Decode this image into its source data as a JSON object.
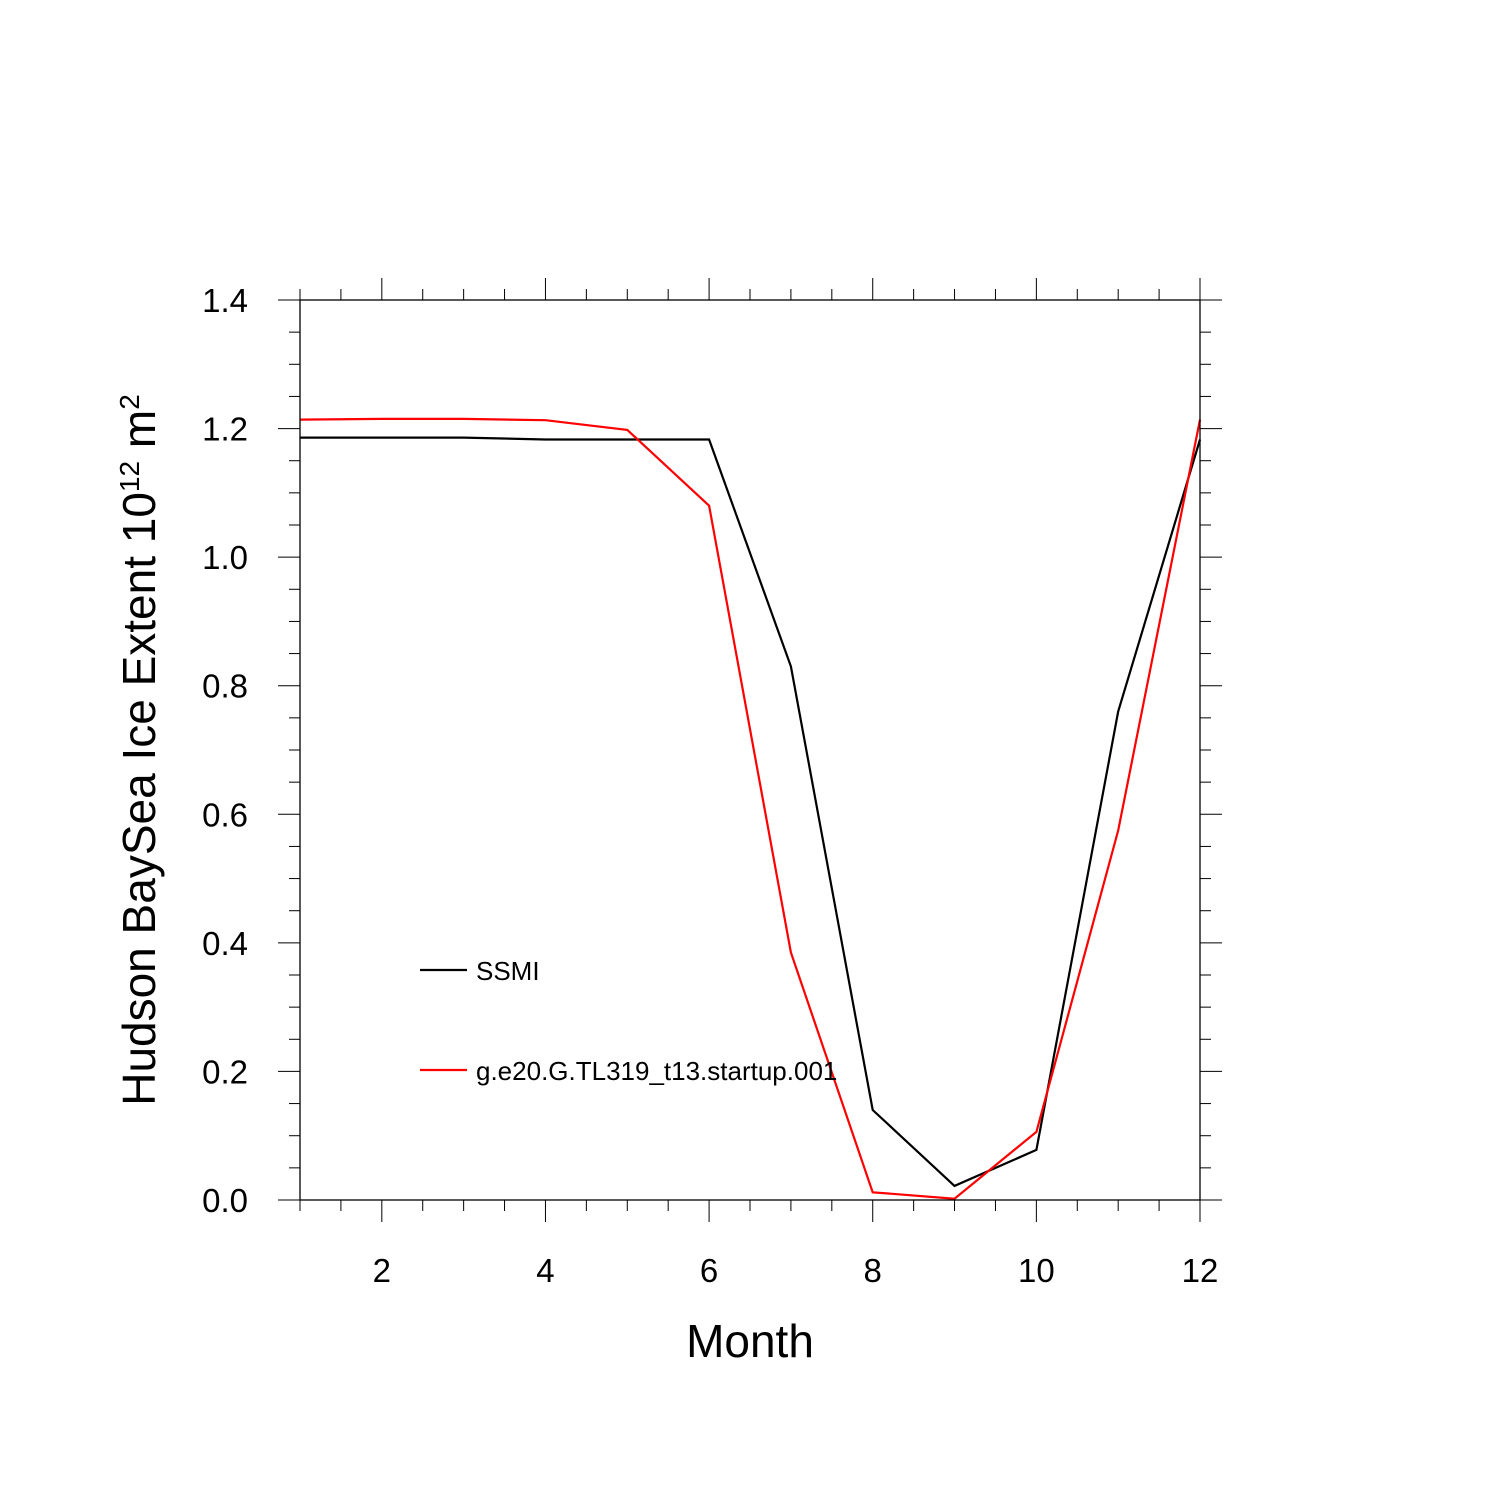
{
  "chart_data": {
    "type": "line",
    "xlabel": "Month",
    "ylabel": {
      "base": "Hudson BaySea Ice Extent 10",
      "exp1": "12",
      "mid": " m",
      "exp2": "2"
    },
    "xlim": [
      1,
      12
    ],
    "ylim": [
      0,
      1.4
    ],
    "x_ticks": [
      2,
      4,
      6,
      8,
      10,
      12
    ],
    "x_tick_labels": [
      "2",
      "4",
      "6",
      "8",
      "10",
      "12"
    ],
    "y_ticks": [
      0,
      0.2,
      0.4,
      0.6,
      0.8,
      1.0,
      1.2,
      1.4
    ],
    "y_tick_labels": [
      "0.0",
      "0.2",
      "0.4",
      "0.6",
      "0.8",
      "1.0",
      "1.2",
      "1.4"
    ],
    "x": [
      1,
      2,
      3,
      4,
      5,
      6,
      7,
      8,
      9,
      10,
      11,
      12
    ],
    "series": [
      {
        "name": "SSMI",
        "color": "#000000",
        "values": [
          1.186,
          1.186,
          1.186,
          1.183,
          1.183,
          1.183,
          0.83,
          0.14,
          0.022,
          0.078,
          0.76,
          1.183
        ]
      },
      {
        "name": "g.e20.G.TL319_t13.startup.001",
        "color": "#ff0000",
        "values": [
          1.214,
          1.215,
          1.215,
          1.213,
          1.198,
          1.08,
          0.385,
          0.012,
          0.002,
          0.106,
          0.575,
          1.214
        ]
      }
    ],
    "grid": false,
    "legend_position": "lower-left inside"
  }
}
